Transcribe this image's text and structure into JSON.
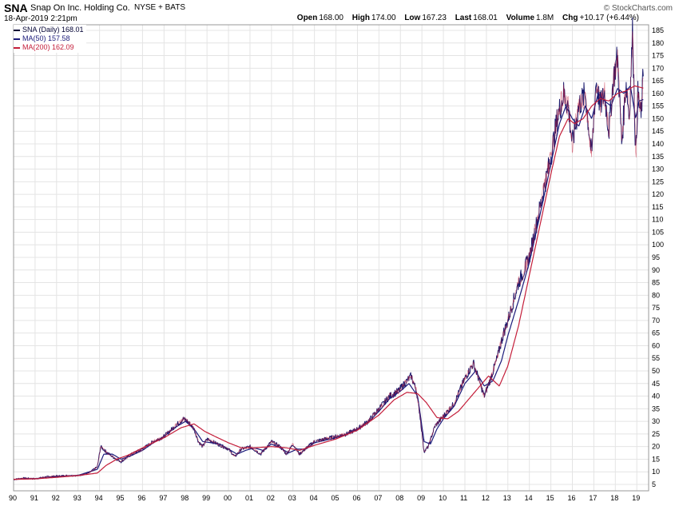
{
  "header": {
    "symbol": "SNA",
    "company": "Snap On Inc. Holding Co.",
    "exchange": "NYSE + BATS",
    "brand": "© StockCharts.com",
    "datetime": "18-Apr-2019 2:21pm",
    "open_label": "Open",
    "open": "168.00",
    "high_label": "High",
    "high": "174.00",
    "low_label": "Low",
    "low": "167.23",
    "last_label": "Last",
    "last": "168.01",
    "volume_label": "Volume",
    "volume": "1.8M",
    "chg_label": "Chg",
    "chg": "+10.17 (+6.44%)"
  },
  "legend": [
    {
      "label": "SNA (Daily) 168.01",
      "color": "#000033"
    },
    {
      "label": "MA(50) 157.58",
      "color": "#1a1a7a"
    },
    {
      "label": "MA(200) 162.09",
      "color": "#c41e3a"
    }
  ],
  "colors": {
    "price": "#1c1c6e",
    "ma50": "#1a1a7a",
    "ma200": "#c41e3a",
    "grid": "#e4e4e4"
  },
  "chart_data": {
    "type": "line",
    "title": "SNA Snap On Inc. Holding Co.",
    "xlabel": "",
    "ylabel": "",
    "xlim": [
      1990.0,
      2019.55
    ],
    "ylim": [
      5,
      185
    ],
    "y_ticks": [
      5,
      10,
      15,
      20,
      25,
      30,
      35,
      40,
      45,
      50,
      55,
      60,
      65,
      70,
      75,
      80,
      85,
      90,
      95,
      100,
      105,
      110,
      115,
      120,
      125,
      130,
      135,
      140,
      145,
      150,
      155,
      160,
      165,
      170,
      175,
      180,
      185
    ],
    "x_ticks": [
      {
        "label": "90",
        "x": 1990
      },
      {
        "label": "91",
        "x": 1991
      },
      {
        "label": "92",
        "x": 1992
      },
      {
        "label": "93",
        "x": 1993
      },
      {
        "label": "94",
        "x": 1994
      },
      {
        "label": "95",
        "x": 1995
      },
      {
        "label": "96",
        "x": 1996
      },
      {
        "label": "97",
        "x": 1997
      },
      {
        "label": "98",
        "x": 1998
      },
      {
        "label": "99",
        "x": 1999
      },
      {
        "label": "00",
        "x": 2000
      },
      {
        "label": "01",
        "x": 2001
      },
      {
        "label": "02",
        "x": 2002
      },
      {
        "label": "03",
        "x": 2003
      },
      {
        "label": "04",
        "x": 2004
      },
      {
        "label": "05",
        "x": 2005
      },
      {
        "label": "06",
        "x": 2006
      },
      {
        "label": "07",
        "x": 2007
      },
      {
        "label": "08",
        "x": 2008
      },
      {
        "label": "09",
        "x": 2009
      },
      {
        "label": "10",
        "x": 2010
      },
      {
        "label": "11",
        "x": 2011
      },
      {
        "label": "12",
        "x": 2012
      },
      {
        "label": "13",
        "x": 2013
      },
      {
        "label": "14",
        "x": 2014
      },
      {
        "label": "15",
        "x": 2015
      },
      {
        "label": "16",
        "x": 2016
      },
      {
        "label": "17",
        "x": 2017
      },
      {
        "label": "18",
        "x": 2018
      },
      {
        "label": "19",
        "x": 2019
      }
    ],
    "series": [
      {
        "name": "SNA (Daily)",
        "x": [
          1990.0,
          1990.5,
          1991.0,
          1991.5,
          1992.0,
          1992.5,
          1993.0,
          1993.5,
          1993.9,
          1994.05,
          1994.3,
          1994.6,
          1995.0,
          1995.5,
          1996.0,
          1996.5,
          1997.0,
          1997.5,
          1997.9,
          1998.1,
          1998.4,
          1998.6,
          1998.8,
          1999.0,
          1999.5,
          2000.0,
          2000.3,
          2000.6,
          2001.0,
          2001.5,
          2002.0,
          2002.4,
          2002.7,
          2003.0,
          2003.3,
          2003.7,
          2004.0,
          2004.5,
          2005.0,
          2005.5,
          2006.0,
          2006.5,
          2007.0,
          2007.5,
          2007.9,
          2008.2,
          2008.5,
          2008.75,
          2008.9,
          2009.1,
          2009.3,
          2009.6,
          2010.0,
          2010.5,
          2011.0,
          2011.4,
          2011.6,
          2011.9,
          2012.2,
          2012.5,
          2012.8,
          2013.0,
          2013.5,
          2014.0,
          2014.5,
          2015.0,
          2015.3,
          2015.6,
          2015.8,
          2016.0,
          2016.1,
          2016.3,
          2016.6,
          2016.9,
          2017.1,
          2017.3,
          2017.5,
          2017.7,
          2017.9,
          2018.1,
          2018.3,
          2018.5,
          2018.65,
          2018.8,
          2018.95,
          2019.05,
          2019.2,
          2019.3
        ],
        "values": [
          7,
          7.5,
          7.2,
          8.0,
          8.3,
          8.5,
          8.5,
          9.5,
          12,
          20,
          18,
          16,
          14,
          17,
          19,
          22,
          24,
          28,
          31,
          30,
          27,
          22,
          20,
          23,
          21,
          19,
          16,
          19,
          20,
          17,
          22,
          20,
          17,
          21,
          17,
          20,
          22,
          23,
          24,
          25,
          27,
          30,
          35,
          40,
          42,
          45,
          48,
          42,
          33,
          18,
          20,
          28,
          32,
          37,
          47,
          53,
          48,
          40,
          47,
          55,
          65,
          70,
          85,
          95,
          115,
          135,
          150,
          160,
          155,
          140,
          145,
          155,
          160,
          135,
          165,
          155,
          160,
          145,
          165,
          175,
          140,
          165,
          150,
          185,
          135,
          160,
          150,
          168
        ]
      },
      {
        "name": "MA(50)",
        "x": [
          1990.0,
          1991.0,
          1992.0,
          1993.0,
          1993.9,
          1994.2,
          1994.6,
          1995.0,
          1995.5,
          1996.0,
          1996.5,
          1997.0,
          1997.5,
          1998.0,
          1998.4,
          1998.8,
          1999.2,
          1999.6,
          2000.0,
          2000.4,
          2000.8,
          2001.2,
          2001.6,
          2002.0,
          2002.4,
          2002.8,
          2003.2,
          2003.6,
          2004.0,
          2004.5,
          2005.0,
          2005.5,
          2006.0,
          2006.5,
          2007.0,
          2007.5,
          2008.0,
          2008.4,
          2008.8,
          2009.1,
          2009.4,
          2009.7,
          2010.0,
          2010.5,
          2011.0,
          2011.5,
          2011.9,
          2012.3,
          2012.7,
          2013.0,
          2013.5,
          2014.0,
          2014.5,
          2015.0,
          2015.4,
          2015.7,
          2016.0,
          2016.3,
          2016.6,
          2016.9,
          2017.2,
          2017.5,
          2017.8,
          2018.1,
          2018.4,
          2018.7,
          2018.95,
          2019.1,
          2019.3
        ],
        "values": [
          7,
          7.3,
          8.1,
          8.6,
          11,
          17,
          17,
          15,
          16.5,
          18.5,
          21.5,
          24,
          27.5,
          30,
          27,
          22,
          21.5,
          21,
          19,
          17,
          18.5,
          19.5,
          18.5,
          21,
          19.5,
          17.5,
          19,
          19,
          21.5,
          22.5,
          23.5,
          25,
          27,
          29.5,
          34,
          39,
          42,
          45,
          40,
          22,
          21,
          27,
          31,
          36,
          45,
          50,
          44,
          46,
          54,
          64,
          78,
          93,
          112,
          132,
          148,
          155,
          150,
          147,
          155,
          150,
          160,
          157,
          155,
          162,
          160,
          163,
          150,
          157,
          157.6
        ]
      },
      {
        "name": "MA(200)",
        "x": [
          1990.0,
          1991.0,
          1992.0,
          1993.0,
          1993.9,
          1994.3,
          1994.8,
          1995.3,
          1996.0,
          1997.0,
          1997.8,
          1998.4,
          1998.9,
          1999.5,
          2000.0,
          2000.6,
          2001.2,
          2002.0,
          2002.7,
          2003.3,
          2004.0,
          2005.0,
          2006.0,
          2007.0,
          2007.7,
          2008.3,
          2008.8,
          2009.2,
          2009.7,
          2010.2,
          2010.7,
          2011.2,
          2011.7,
          2012.1,
          2012.6,
          2013.0,
          2013.5,
          2014.0,
          2014.5,
          2015.0,
          2015.4,
          2015.8,
          2016.1,
          2016.5,
          2016.9,
          2017.3,
          2017.7,
          2018.1,
          2018.5,
          2018.9,
          2019.3
        ],
        "values": [
          7,
          7.2,
          7.8,
          8.5,
          9.5,
          12.5,
          15,
          16.5,
          19.5,
          23.5,
          27.5,
          29,
          26,
          23.5,
          21.5,
          19.5,
          19.5,
          20,
          19.5,
          18.5,
          20.5,
          23,
          26.5,
          32.5,
          38.5,
          41.5,
          41,
          37.5,
          31.5,
          31,
          34,
          39,
          44,
          48,
          44,
          52,
          68,
          88,
          108,
          128,
          143,
          150,
          148,
          150,
          155,
          158,
          157,
          160,
          161,
          163,
          162.1
        ]
      }
    ]
  }
}
